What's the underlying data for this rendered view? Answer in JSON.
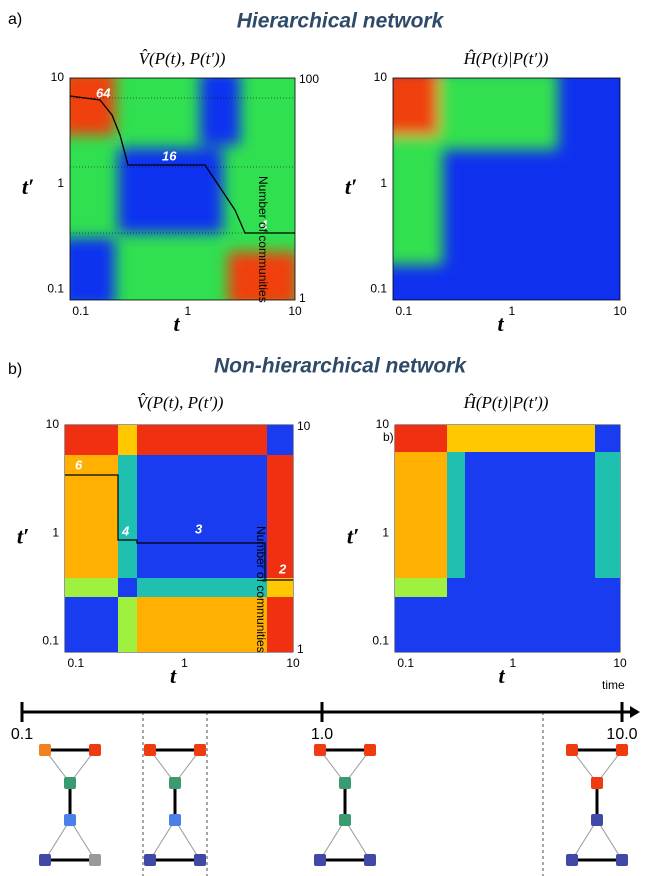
{
  "panel_a": {
    "label": "a)",
    "title": "Hierarchical network",
    "left": {
      "title": "V̂(P(t), P(t′))",
      "y_ticks": [
        "10",
        "1",
        "0.1"
      ],
      "x_ticks": [
        "0.1",
        "1",
        "10"
      ],
      "right_ticks": [
        "100",
        "1"
      ],
      "right_label": "Number of communities",
      "x_label": "t",
      "y_label": "t′",
      "annotations": [
        "64",
        "16",
        "4"
      ]
    },
    "right": {
      "title": "Ĥ(P(t)|P(t′))",
      "y_ticks": [
        "10",
        "1",
        "0.1"
      ],
      "x_ticks": [
        "0.1",
        "1",
        "10"
      ],
      "x_label": "t",
      "y_label": "t′"
    }
  },
  "panel_b": {
    "label": "b)",
    "title": "Non-hierarchical network",
    "left": {
      "title": "V̂(P(t), P(t′))",
      "y_ticks": [
        "10",
        "1",
        "0.1"
      ],
      "x_ticks": [
        "0.1",
        "1",
        "10"
      ],
      "right_ticks": [
        "10",
        "1"
      ],
      "right_label": "Number of communities",
      "x_label": "t",
      "y_label": "t′",
      "annotations": [
        "6",
        "4",
        "3",
        "2"
      ]
    },
    "right": {
      "title": "Ĥ(P(t)|P(t′))",
      "inset_label": "b)",
      "y_ticks": [
        "10",
        "1",
        "0.1"
      ],
      "x_ticks": [
        "0.1",
        "1",
        "10"
      ],
      "x_label": "t",
      "y_label": "t′"
    }
  },
  "timeline": {
    "ticks": [
      "0.1",
      "1.0",
      "10.0"
    ],
    "label": "time"
  }
}
